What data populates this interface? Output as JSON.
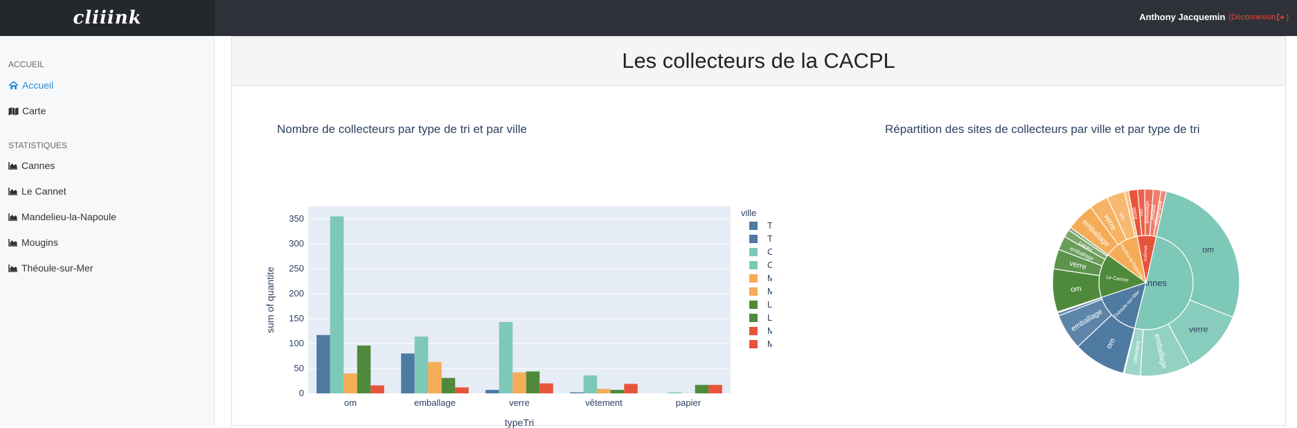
{
  "brand": {
    "logo": "cliiink"
  },
  "header": {
    "user_name": "Anthony Jacquemin",
    "logout_label": "(Déconnexion",
    "logout_close": ")"
  },
  "sidebar": {
    "sections": [
      {
        "title": "ACCUEIL",
        "items": [
          {
            "label": "Accueil",
            "icon": "home-icon",
            "active": true
          },
          {
            "label": "Carte",
            "icon": "map-icon",
            "active": false
          }
        ]
      },
      {
        "title": "STATISTIQUES",
        "items": [
          {
            "label": "Cannes",
            "icon": "area-chart-icon"
          },
          {
            "label": "Le Cannet",
            "icon": "area-chart-icon"
          },
          {
            "label": "Mandelieu-la-Napoule",
            "icon": "area-chart-icon"
          },
          {
            "label": "Mougins",
            "icon": "area-chart-icon"
          },
          {
            "label": "Théoule-sur-Mer",
            "icon": "area-chart-icon"
          }
        ]
      }
    ]
  },
  "page": {
    "title": "Les collecteurs de la CACPL"
  },
  "colors": {
    "theoule": "#4f7aa1",
    "cannes": "#7ec8b8",
    "mandelieu": "#f5ac57",
    "lecannet": "#4f8a3c",
    "mougins": "#e8543a",
    "accent": "#2b8dd6"
  },
  "chart_data": [
    {
      "type": "bar",
      "title": "Nombre de collecteurs par type de tri et par ville",
      "xlabel": "typeTri",
      "ylabel": "sum of quantite",
      "ylim": [
        0,
        375
      ],
      "yticks": [
        0,
        50,
        100,
        150,
        200,
        250,
        300,
        350
      ],
      "categories": [
        "om",
        "emballage",
        "verre",
        "vêtement",
        "papier"
      ],
      "legend_title": "ville",
      "legend_entries": [
        "Théoule-sur-Mer",
        "Théoule-sur-Mer",
        "Cannes",
        "Cannes",
        "Mandelieu-la-Napoule",
        "Mandelieu-la-Napoule",
        "Le Cannet",
        "Le Cannet",
        "Mougins",
        "Mougins"
      ],
      "series": [
        {
          "name": "Théoule-sur-Mer",
          "color": "#4f7aa1",
          "values": [
            117,
            80,
            7,
            2,
            0
          ]
        },
        {
          "name": "Cannes",
          "color": "#7ec8b8",
          "values": [
            355,
            114,
            143,
            36,
            2
          ]
        },
        {
          "name": "Mandelieu-la-Napoule",
          "color": "#f5ac57",
          "values": [
            40,
            63,
            42,
            9,
            0
          ]
        },
        {
          "name": "Le Cannet",
          "color": "#4f8a3c",
          "values": [
            96,
            31,
            44,
            7,
            17
          ]
        },
        {
          "name": "Mougins",
          "color": "#e8543a",
          "values": [
            16,
            12,
            20,
            19,
            17
          ]
        }
      ]
    },
    {
      "type": "sunburst",
      "title": "Répartition des sites de collecteurs par ville et par type de tri",
      "labels": [
        "Cannes",
        "om",
        "verre",
        "emballage",
        "vêtement",
        "Théoule-sur-Mer",
        "om",
        "emballage",
        "Le Cannet",
        "om",
        "verre",
        "emballage",
        "papier",
        "vêtement",
        "Mandelieu-la-Napoule",
        "emballage",
        "verre",
        "om",
        "Mougins",
        "verre",
        "om",
        "papier",
        "vêtement",
        "emballage"
      ],
      "rings": [
        {
          "name": "Cannes",
          "color": "#7ec8b8",
          "children": [
            {
              "name": "om",
              "value": 355
            },
            {
              "name": "verre",
              "value": 143
            },
            {
              "name": "emballage",
              "value": 114
            },
            {
              "name": "vêtement",
              "value": 36
            },
            {
              "name": "papier",
              "value": 2
            }
          ]
        },
        {
          "name": "Théoule-sur-Mer",
          "color": "#4f7aa1",
          "children": [
            {
              "name": "om",
              "value": 117
            },
            {
              "name": "emballage",
              "value": 80
            },
            {
              "name": "verre",
              "value": 7
            },
            {
              "name": "vêtement",
              "value": 2
            }
          ]
        },
        {
          "name": "Le Cannet",
          "color": "#4f8a3c",
          "children": [
            {
              "name": "om",
              "value": 96
            },
            {
              "name": "verre",
              "value": 44
            },
            {
              "name": "emballage",
              "value": 31
            },
            {
              "name": "papier",
              "value": 17
            },
            {
              "name": "vêtement",
              "value": 7
            }
          ]
        },
        {
          "name": "Mandelieu-la-Napoule",
          "color": "#f5ac57",
          "children": [
            {
              "name": "emballage",
              "value": 63
            },
            {
              "name": "verre",
              "value": 42
            },
            {
              "name": "om",
              "value": 40
            },
            {
              "name": "vêtement",
              "value": 9
            }
          ]
        },
        {
          "name": "Mougins",
          "color": "#e8543a",
          "children": [
            {
              "name": "verre",
              "value": 20
            },
            {
              "name": "om",
              "value": 16
            },
            {
              "name": "vêtement",
              "value": 19
            },
            {
              "name": "papier",
              "value": 17
            },
            {
              "name": "emballage",
              "value": 12
            }
          ]
        }
      ]
    }
  ]
}
